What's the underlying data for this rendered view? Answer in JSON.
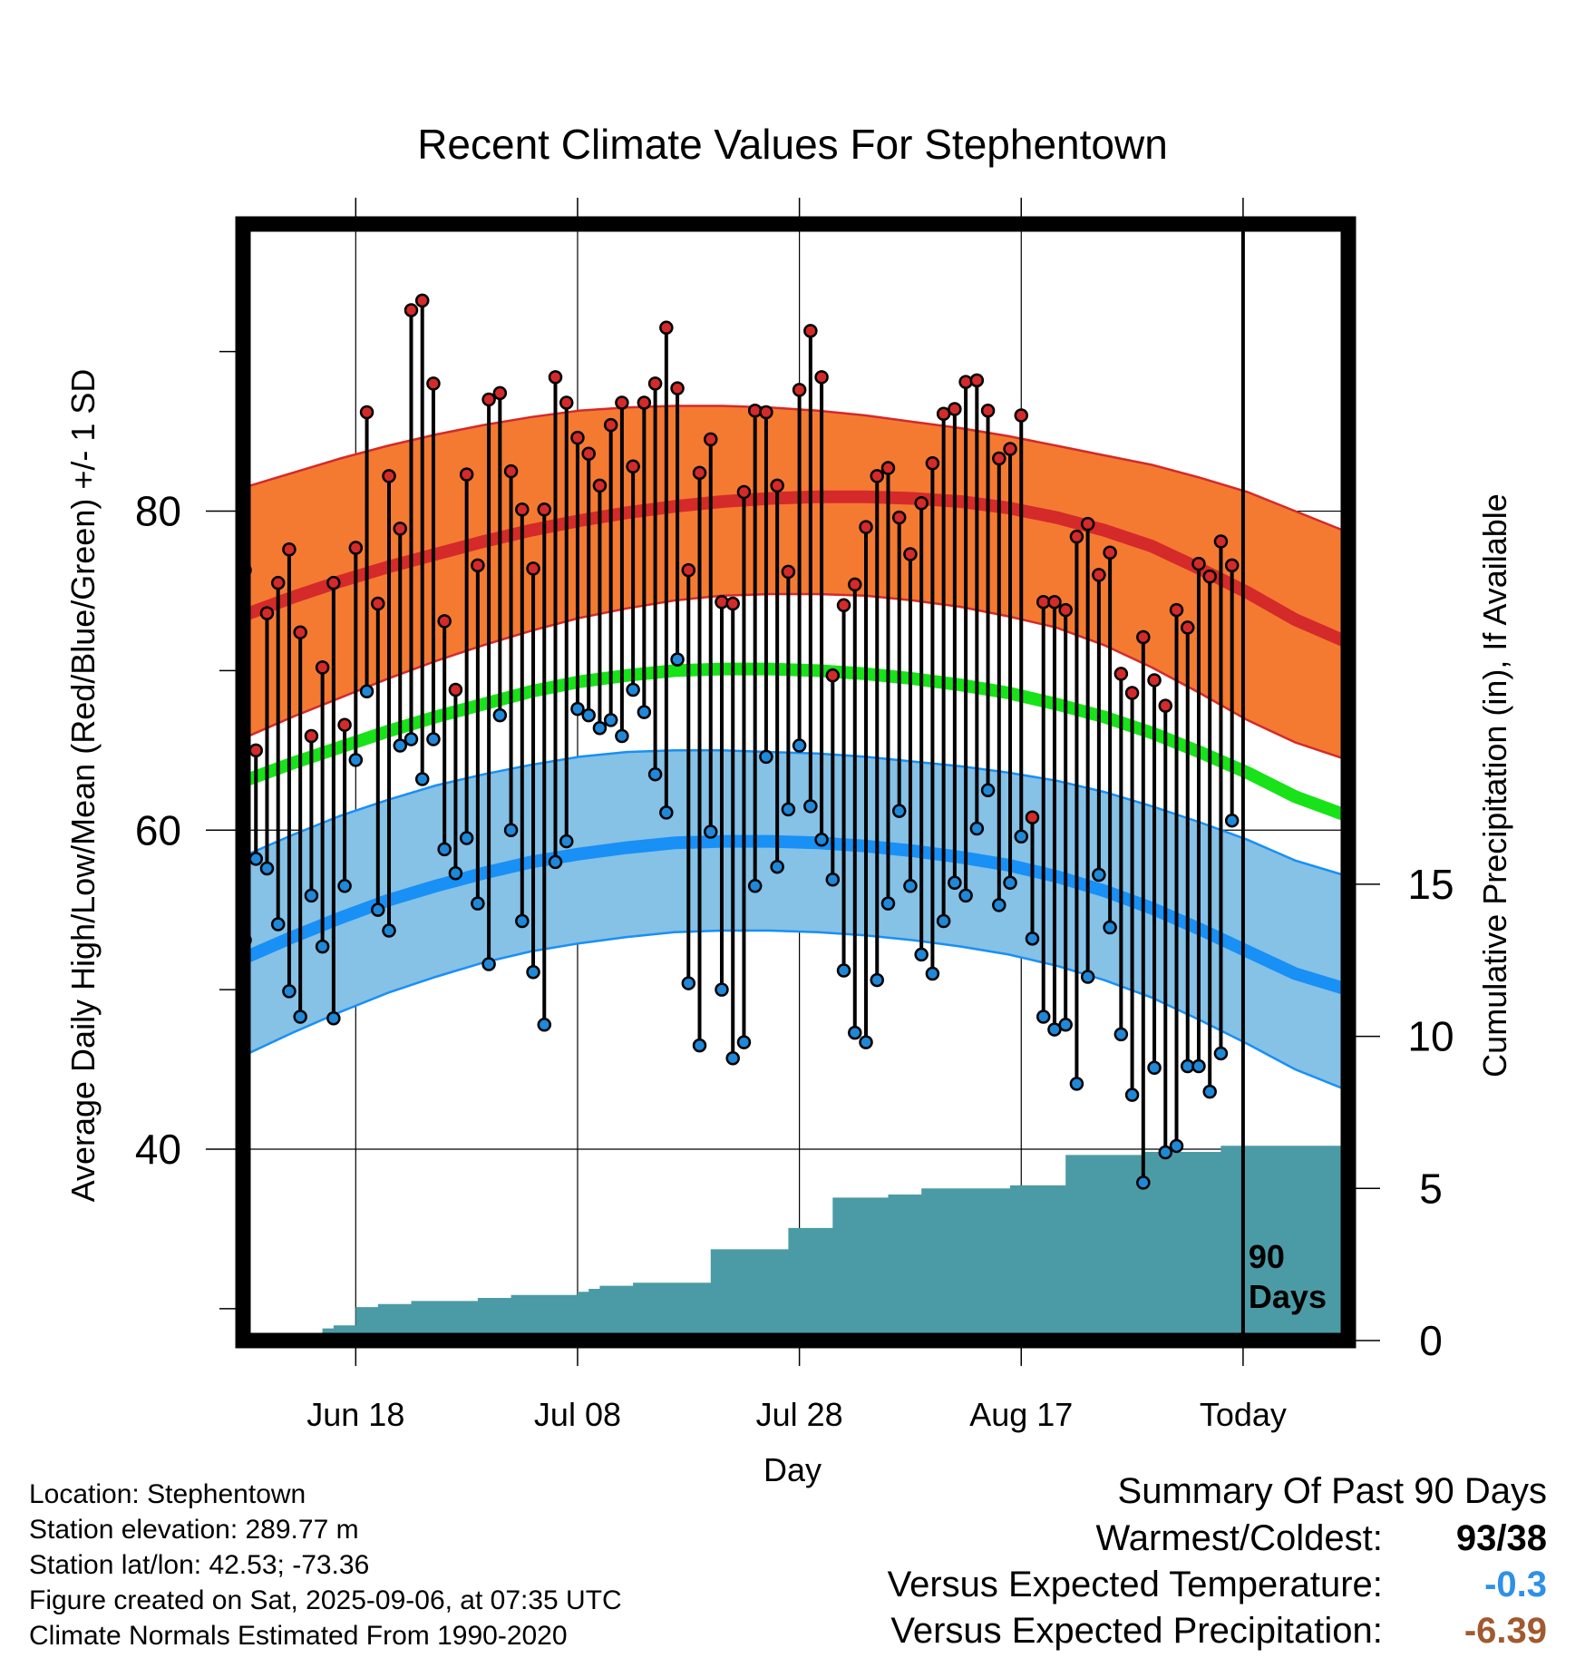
{
  "chart_data": {
    "type": "line",
    "title": "Recent Climate Values For Stephentown",
    "xlabel": "Day",
    "ylabel": "Average Daily High/Low/Mean (Red/Blue/Green) +/- 1 SD",
    "y2label": "Cumulative Precipitation (in), If Available",
    "ylim": [
      28,
      98
    ],
    "y_ticks": [
      40,
      60,
      80
    ],
    "y2lim": [
      0,
      36.7
    ],
    "y2_ticks": [
      0,
      5,
      10,
      15
    ],
    "x_tick_labels": [
      {
        "day": 11,
        "label": "Jun 18"
      },
      {
        "day": 31,
        "label": "Jul 08"
      },
      {
        "day": 51,
        "label": "Jul 28"
      },
      {
        "day": 71,
        "label": "Aug 17"
      },
      {
        "day": 91,
        "label": "Today"
      }
    ],
    "x_range": [
      1,
      100
    ],
    "today_day": 91,
    "today_label": [
      "90",
      "Days"
    ],
    "grid": true,
    "normal_high": [
      73.5,
      74.6,
      75.6,
      76.5,
      77.3,
      78.1,
      78.8,
      79.4,
      79.9,
      80.3,
      80.6,
      80.8,
      80.9,
      80.9,
      80.8,
      80.6,
      80.2,
      79.6,
      78.8,
      77.8,
      76.4,
      74.9,
      73.2,
      71.9
    ],
    "normal_high_upper": [
      81.5,
      82.4,
      83.3,
      84.1,
      84.8,
      85.4,
      85.9,
      86.3,
      86.5,
      86.6,
      86.6,
      86.5,
      86.3,
      86.0,
      85.6,
      85.2,
      84.7,
      84.1,
      83.5,
      82.9,
      82.1,
      81.2,
      80.0,
      78.8
    ],
    "normal_high_lower": [
      65.8,
      67.1,
      68.3,
      69.5,
      70.6,
      71.6,
      72.5,
      73.3,
      73.9,
      74.4,
      74.7,
      74.8,
      74.8,
      74.7,
      74.4,
      74.0,
      73.4,
      72.7,
      71.6,
      70.2,
      68.6,
      66.9,
      65.5,
      64.5
    ],
    "normal_mean": [
      63.1,
      64.2,
      65.2,
      66.2,
      67.1,
      67.9,
      68.7,
      69.3,
      69.7,
      70.0,
      70.1,
      70.1,
      70.0,
      69.8,
      69.5,
      69.1,
      68.6,
      67.9,
      67.1,
      66.1,
      64.9,
      63.6,
      62.1,
      61.0
    ],
    "normal_low": [
      52.0,
      53.3,
      54.5,
      55.6,
      56.5,
      57.3,
      58.0,
      58.5,
      58.9,
      59.2,
      59.3,
      59.3,
      59.2,
      59.0,
      58.7,
      58.3,
      57.8,
      57.1,
      56.2,
      55.1,
      53.8,
      52.4,
      51.0,
      50.1
    ],
    "normal_low_upper": [
      58.4,
      59.7,
      60.9,
      61.9,
      62.8,
      63.5,
      64.1,
      64.6,
      64.9,
      65.0,
      65.0,
      64.9,
      64.8,
      64.6,
      64.3,
      64.0,
      63.6,
      63.1,
      62.4,
      61.5,
      60.5,
      59.4,
      58.1,
      57.2
    ],
    "normal_low_lower": [
      45.9,
      47.3,
      48.6,
      49.8,
      50.8,
      51.7,
      52.4,
      52.9,
      53.3,
      53.6,
      53.7,
      53.7,
      53.6,
      53.4,
      53.1,
      52.7,
      52.2,
      51.5,
      50.6,
      49.5,
      48.1,
      46.6,
      45.0,
      43.8
    ],
    "daily_high": [
      76.3,
      65.0,
      73.6,
      75.5,
      77.6,
      72.4,
      65.9,
      70.2,
      75.5,
      66.6,
      77.7,
      86.2,
      74.2,
      82.2,
      78.9,
      92.6,
      93.2,
      88.0,
      73.1,
      68.8,
      82.3,
      76.6,
      87.0,
      87.4,
      82.5,
      80.1,
      76.4,
      80.1,
      88.4,
      86.8,
      84.6,
      83.6,
      81.6,
      85.4,
      86.8,
      82.8,
      86.8,
      88.0,
      91.5,
      87.7,
      76.3,
      82.4,
      84.5,
      74.3,
      74.2,
      81.2,
      86.3,
      86.2,
      81.6,
      76.2,
      87.6,
      91.3,
      88.4,
      69.7,
      74.1,
      75.4,
      79.0,
      82.2,
      82.7,
      79.6,
      77.3,
      80.5,
      83.0,
      86.1,
      86.4,
      88.1,
      88.2,
      86.3,
      83.3,
      83.9,
      86.0,
      60.8,
      74.3,
      74.3,
      73.8,
      78.4,
      79.2,
      76.0,
      77.4,
      69.8,
      68.6,
      72.1,
      69.4,
      67.8,
      73.8,
      72.7,
      76.7,
      75.9,
      78.1,
      76.6
    ],
    "daily_low": [
      53.1,
      58.2,
      57.6,
      54.1,
      49.9,
      48.3,
      55.9,
      52.7,
      48.2,
      56.5,
      64.4,
      68.7,
      55.0,
      53.7,
      65.3,
      65.7,
      63.2,
      65.7,
      58.8,
      57.3,
      59.5,
      55.4,
      51.6,
      67.2,
      60.0,
      54.3,
      51.1,
      47.8,
      58.0,
      59.3,
      67.6,
      67.2,
      66.4,
      66.9,
      65.9,
      68.8,
      67.4,
      63.5,
      61.1,
      70.7,
      50.4,
      46.5,
      59.9,
      50.0,
      45.7,
      46.7,
      56.5,
      64.6,
      57.7,
      61.3,
      65.3,
      61.5,
      59.4,
      56.9,
      51.2,
      47.3,
      46.7,
      50.6,
      55.4,
      61.2,
      56.5,
      52.2,
      51.0,
      54.3,
      56.7,
      55.9,
      60.1,
      62.5,
      55.3,
      56.7,
      59.6,
      53.2,
      48.3,
      47.5,
      47.8,
      44.1,
      50.8,
      57.2,
      53.9,
      47.2,
      43.4,
      37.9,
      45.1,
      39.8,
      40.2,
      45.2,
      45.2,
      43.6,
      46.0,
      60.6
    ],
    "precip_cumulative": [
      0.0,
      0.0,
      0.0,
      0.0,
      0.0,
      0.0,
      0.0,
      0.4,
      0.5,
      0.5,
      1.1,
      1.1,
      1.2,
      1.2,
      1.2,
      1.3,
      1.3,
      1.3,
      1.3,
      1.3,
      1.3,
      1.4,
      1.4,
      1.4,
      1.5,
      1.5,
      1.5,
      1.5,
      1.5,
      1.5,
      1.6,
      1.7,
      1.8,
      1.8,
      1.8,
      1.9,
      1.9,
      1.9,
      1.9,
      1.9,
      1.9,
      1.9,
      3.0,
      3.0,
      3.0,
      3.0,
      3.0,
      3.0,
      3.0,
      3.7,
      3.7,
      3.7,
      3.7,
      4.7,
      4.7,
      4.7,
      4.7,
      4.7,
      4.8,
      4.8,
      4.8,
      5.0,
      5.0,
      5.0,
      5.0,
      5.0,
      5.0,
      5.0,
      5.0,
      5.1,
      5.1,
      5.1,
      5.1,
      5.1,
      6.1,
      6.1,
      6.1,
      6.1,
      6.1,
      6.1,
      6.1,
      6.2,
      6.2,
      6.2,
      6.2,
      6.2,
      6.2,
      6.2,
      6.4,
      6.4,
      6.4,
      6.4,
      6.4,
      6.4,
      6.4,
      6.4,
      6.4,
      6.4,
      6.4,
      6.4
    ],
    "colors": {
      "high_band": "#f47a32",
      "high_line": "#d42a2a",
      "mean_line": "#18e218",
      "low_band": "#86c1e6",
      "low_line": "#1890f5",
      "precip_fill": "#4b9ba6",
      "high_marker": "#d42a2a",
      "low_marker": "#1f88d8",
      "versus_temp": "#2e90e8",
      "versus_precip": "#a05a30"
    }
  },
  "info": {
    "location": "Location: Stephentown",
    "elevation": "Station elevation: 289.77 m",
    "latlon": "Station lat/lon: 42.53; -73.36",
    "created": "Figure created on Sat, 2025-09-06, at 07:35 UTC",
    "normals": "Climate Normals Estimated From 1990-2020"
  },
  "summary": {
    "title": "Summary Of Past 90 Days",
    "warmest_coldest_label": "Warmest/Coldest:",
    "warmest": "93",
    "separator": "/",
    "coldest": "38",
    "versus_temp_label": "Versus Expected Temperature:",
    "versus_temp_value": "-0.3",
    "versus_precip_label": "Versus Expected Precipitation:",
    "versus_precip_value": "-6.39"
  }
}
